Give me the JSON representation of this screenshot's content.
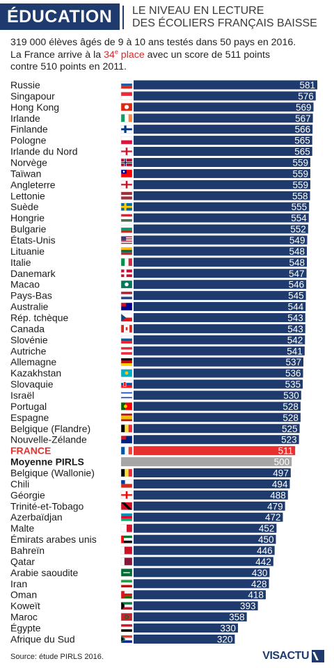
{
  "header": {
    "tag": "ÉDUCATION",
    "title_line1": "LE NIVEAU EN LECTURE",
    "title_line2": "DES ÉCOLIERS FRANÇAIS BAISSE"
  },
  "intro": {
    "line1": "319 000 élèves âgés de 9 à 10 ans testés dans 50 pays en 2016.",
    "line2_before": "La France arrive à la ",
    "rank_number": "34",
    "rank_suffix": "e",
    "rank_word": " place",
    "line2_after": " avec un score de 511 points",
    "line3": "contre 510 points en 2011."
  },
  "colors": {
    "bar": "#1f3b6e",
    "france": "#e8312f",
    "average": "#a6a6a6",
    "header": "#1f3b6e",
    "highlight_text": "#d32a2a"
  },
  "chart_data": {
    "type": "bar",
    "orientation": "horizontal",
    "title": "",
    "xlim": [
      0,
      581
    ],
    "categories": [
      "Russie",
      "Singapour",
      "Hong Kong",
      "Irlande",
      "Finlande",
      "Pologne",
      "Irlande du Nord",
      "Norvège",
      "Taïwan",
      "Angleterre",
      "Lettonie",
      "Suède",
      "Hongrie",
      "Bulgarie",
      "États-Unis",
      "Lituanie",
      "Italie",
      "Danemark",
      "Macao",
      "Pays-Bas",
      "Australie",
      "Rép. tchèque",
      "Canada",
      "Slovénie",
      "Autriche",
      "Allemagne",
      "Kazakhstan",
      "Slovaquie",
      "Israël",
      "Portugal",
      "Espagne",
      "Belgique (Flandre)",
      "Nouvelle-Zélande",
      "FRANCE",
      "Moyenne PIRLS",
      "Belgique (Wallonie)",
      "Chili",
      "Géorgie",
      "Trinité-et-Tobago",
      "Azerbaïdjan",
      "Malte",
      "Émirats arabes unis",
      "Bahreïn",
      "Qatar",
      "Arabie saoudite",
      "Iran",
      "Oman",
      "Koweït",
      "Maroc",
      "Égypte",
      "Afrique du Sud"
    ],
    "values": [
      581,
      576,
      569,
      567,
      566,
      565,
      565,
      559,
      559,
      559,
      558,
      555,
      554,
      552,
      549,
      548,
      548,
      547,
      546,
      545,
      544,
      543,
      543,
      542,
      541,
      537,
      536,
      535,
      530,
      528,
      528,
      525,
      523,
      511,
      500,
      497,
      494,
      488,
      479,
      472,
      452,
      450,
      446,
      442,
      430,
      428,
      418,
      393,
      358,
      330,
      320
    ],
    "highlight": {
      "FRANCE": "france",
      "Moyenne PIRLS": "average"
    },
    "flag_icons": [
      "russia-flag",
      "singapore-flag",
      "hong-kong-flag",
      "ireland-flag",
      "finland-flag",
      "poland-flag",
      "northern-ireland-flag",
      "norway-flag",
      "taiwan-flag",
      "england-flag",
      "latvia-flag",
      "sweden-flag",
      "hungary-flag",
      "bulgaria-flag",
      "usa-flag",
      "lithuania-flag",
      "italy-flag",
      "denmark-flag",
      "macao-flag",
      "netherlands-flag",
      "australia-flag",
      "czech-flag",
      "canada-flag",
      "slovenia-flag",
      "austria-flag",
      "germany-flag",
      "kazakhstan-flag",
      "slovakia-flag",
      "israel-flag",
      "portugal-flag",
      "spain-flag",
      "belgium-flag",
      "new-zealand-flag",
      "france-flag",
      "",
      "belgium-flag",
      "chile-flag",
      "georgia-flag",
      "trinidad-flag",
      "azerbaijan-flag",
      "malta-flag",
      "uae-flag",
      "bahrain-flag",
      "qatar-flag",
      "saudi-arabia-flag",
      "iran-flag",
      "oman-flag",
      "kuwait-flag",
      "morocco-flag",
      "egypt-flag",
      "south-africa-flag"
    ]
  },
  "footer": {
    "source": "Source: étude PIRLS 2016.",
    "logo": "VISACTU"
  }
}
